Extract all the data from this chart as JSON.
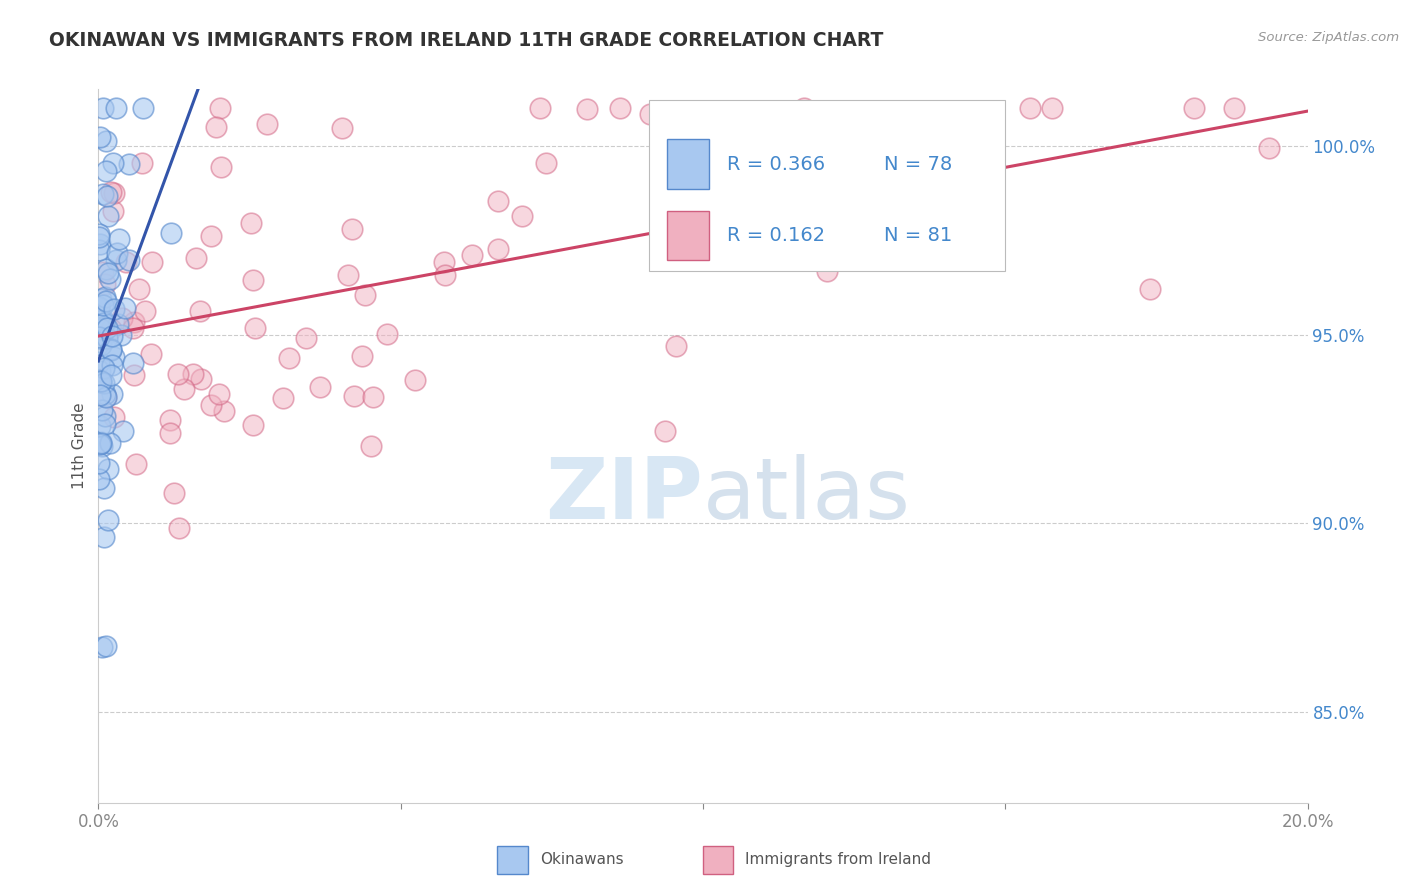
{
  "title": "OKINAWAN VS IMMIGRANTS FROM IRELAND 11TH GRADE CORRELATION CHART",
  "source": "Source: ZipAtlas.com",
  "ylabel": "11th Grade",
  "legend_r1": "R = 0.366",
  "legend_n1": "N = 78",
  "legend_r2": "R = 0.162",
  "legend_n2": "N = 81",
  "legend_label1": "Okinawans",
  "legend_label2": "Immigrants from Ireland",
  "blue_fill": "#a8c8f0",
  "blue_edge": "#5588cc",
  "pink_fill": "#f0b0c0",
  "pink_edge": "#d06080",
  "blue_trend": "#3355aa",
  "pink_trend": "#cc4466",
  "watermark_color": "#c8ddf0",
  "axis_label_color": "#4488cc",
  "tick_color": "#888888",
  "grid_color": "#cccccc",
  "title_color": "#333333",
  "source_color": "#999999",
  "ylabel_color": "#555555",
  "xlim": [
    0.0,
    0.2
  ],
  "ylim": [
    0.826,
    1.015
  ],
  "yticks": [
    0.85,
    0.9,
    0.95,
    1.0
  ],
  "ytick_labels": [
    "85.0%",
    "90.0%",
    "95.0%",
    "100.0%"
  ],
  "xtick_positions": [
    0.0,
    0.05,
    0.1,
    0.15,
    0.2
  ],
  "xtick_labels": [
    "0.0%",
    "",
    "",
    "",
    "20.0%"
  ]
}
